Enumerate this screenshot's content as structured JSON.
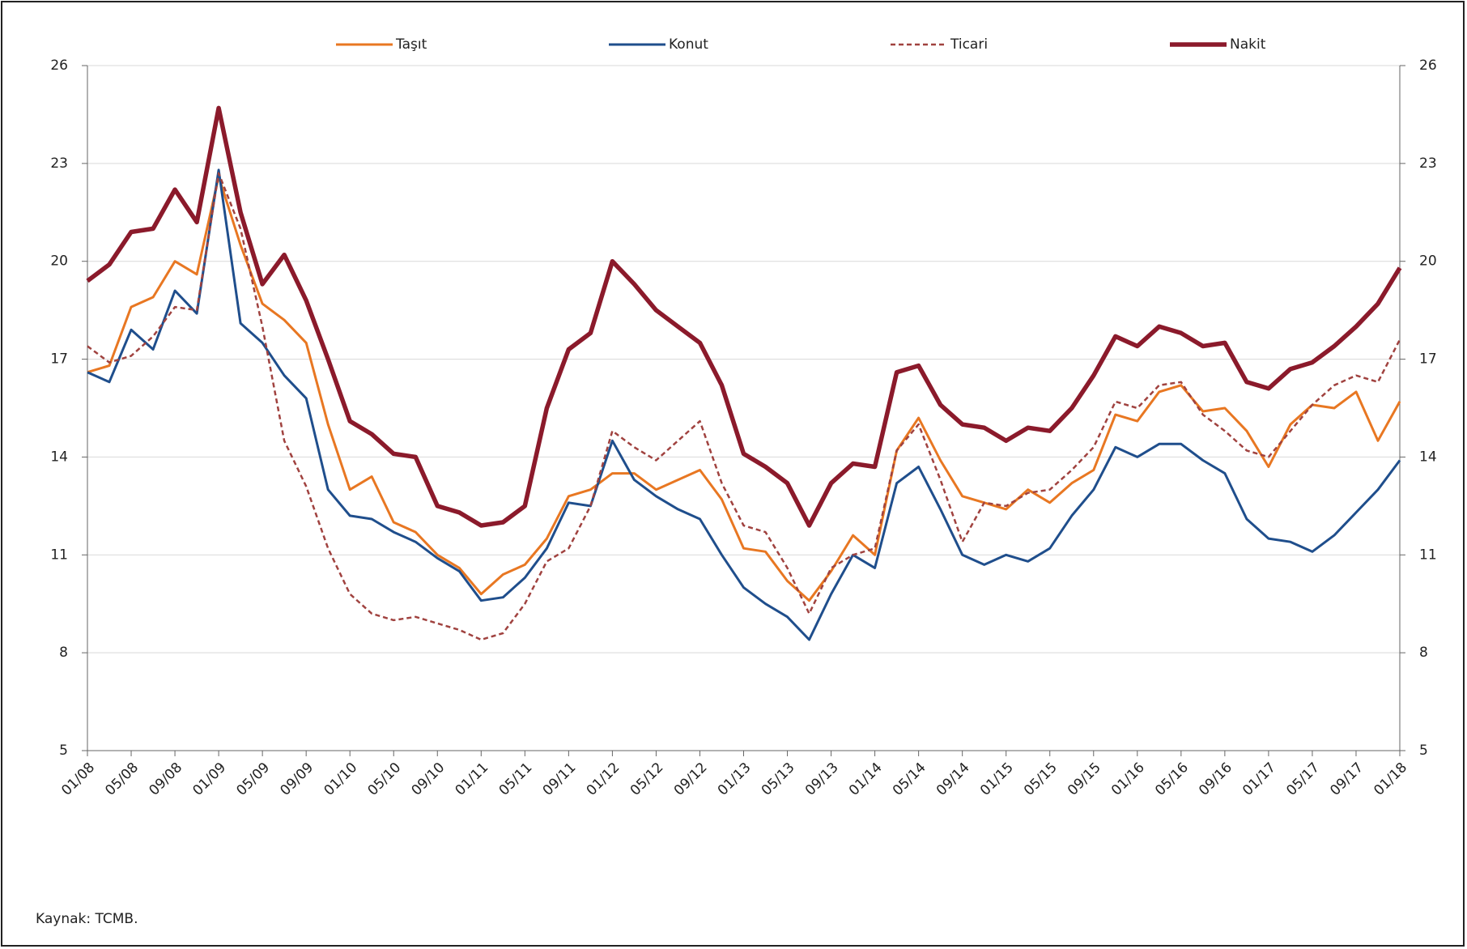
{
  "chart_data": {
    "type": "line",
    "categories": [
      "01/08",
      null,
      "05/08",
      null,
      "09/08",
      null,
      "01/09",
      null,
      "05/09",
      null,
      "09/09",
      null,
      "01/10",
      null,
      "05/10",
      null,
      "09/10",
      null,
      "01/11",
      null,
      "05/11",
      null,
      "09/11",
      null,
      "01/12",
      null,
      "05/12",
      null,
      "09/12",
      null,
      "01/13",
      null,
      "05/13",
      null,
      "09/13",
      null,
      "01/14",
      null,
      "05/14",
      null,
      "09/14",
      null,
      "01/15",
      null,
      "05/15",
      null,
      "09/15",
      null,
      "01/16",
      null,
      "05/16",
      null,
      "09/16",
      null,
      "01/17",
      null,
      "05/17",
      null,
      "09/17",
      null,
      "01/18"
    ],
    "series": [
      {
        "name": "Taşıt",
        "color": "#e87722",
        "line_style": "solid",
        "line_width": 3,
        "values": [
          16.6,
          16.8,
          18.6,
          18.9,
          20.0,
          19.6,
          22.6,
          20.5,
          18.7,
          18.2,
          17.5,
          15.0,
          13.0,
          13.4,
          12.0,
          11.7,
          11.0,
          10.6,
          9.8,
          10.4,
          10.7,
          11.5,
          12.8,
          13.0,
          13.5,
          13.5,
          13.0,
          13.3,
          13.6,
          12.7,
          11.2,
          11.1,
          10.2,
          9.6,
          10.5,
          11.6,
          11.0,
          14.2,
          15.2,
          13.9,
          12.8,
          12.6,
          12.4,
          13.0,
          12.6,
          13.2,
          13.6,
          15.3,
          15.1,
          16.0,
          16.2,
          15.4,
          15.5,
          14.8,
          13.7,
          15.0,
          15.6,
          15.5,
          16.0,
          14.5,
          15.7
        ]
      },
      {
        "name": "Konut",
        "color": "#1f4e8c",
        "line_style": "solid",
        "line_width": 3,
        "values": [
          16.6,
          16.3,
          17.9,
          17.3,
          19.1,
          18.4,
          22.8,
          18.1,
          17.5,
          16.5,
          15.8,
          13.0,
          12.2,
          12.1,
          11.7,
          11.4,
          10.9,
          10.5,
          9.6,
          9.7,
          10.3,
          11.2,
          12.6,
          12.5,
          14.5,
          13.3,
          12.8,
          12.4,
          12.1,
          11.0,
          10.0,
          9.5,
          9.1,
          8.4,
          9.8,
          11.0,
          10.6,
          13.2,
          13.7,
          12.4,
          11.0,
          10.7,
          11.0,
          10.8,
          11.2,
          12.2,
          13.0,
          14.3,
          14.0,
          14.4,
          14.4,
          13.9,
          13.5,
          12.1,
          11.5,
          11.4,
          11.1,
          11.6,
          12.3,
          13.0,
          13.9
        ]
      },
      {
        "name": "Ticari",
        "color": "#a0423f",
        "line_style": "dashed",
        "line_width": 2.5,
        "values": [
          17.4,
          16.9,
          17.1,
          17.7,
          18.6,
          18.5,
          22.7,
          21.0,
          18.0,
          14.5,
          13.1,
          11.2,
          9.8,
          9.2,
          9.0,
          9.1,
          8.9,
          8.7,
          8.4,
          8.6,
          9.5,
          10.8,
          11.2,
          12.5,
          14.8,
          14.3,
          13.9,
          14.5,
          15.1,
          13.2,
          11.9,
          11.7,
          10.6,
          9.2,
          10.6,
          11.0,
          11.2,
          14.2,
          15.0,
          13.3,
          11.4,
          12.6,
          12.5,
          12.9,
          13.0,
          13.6,
          14.3,
          15.7,
          15.5,
          16.2,
          16.3,
          15.3,
          14.8,
          14.2,
          14.0,
          14.8,
          15.6,
          16.2,
          16.5,
          16.3,
          17.6
        ]
      },
      {
        "name": "Nakit",
        "color": "#8b1a2b",
        "line_style": "solid",
        "line_width": 5.5,
        "values": [
          19.4,
          19.9,
          20.9,
          21.0,
          22.2,
          21.2,
          24.7,
          21.5,
          19.3,
          20.2,
          18.8,
          17.0,
          15.1,
          14.7,
          14.1,
          14.0,
          12.5,
          12.3,
          11.9,
          12.0,
          12.5,
          15.5,
          17.3,
          17.8,
          20.0,
          19.3,
          18.5,
          18.0,
          17.5,
          16.2,
          14.1,
          13.7,
          13.2,
          11.9,
          13.2,
          13.8,
          13.7,
          16.6,
          16.8,
          15.6,
          15.0,
          14.9,
          14.5,
          14.9,
          14.8,
          15.5,
          16.5,
          17.7,
          17.4,
          18.0,
          17.8,
          17.4,
          17.5,
          16.3,
          16.1,
          16.7,
          16.9,
          17.4,
          18.0,
          18.7,
          19.8
        ]
      }
    ],
    "ylim": [
      5,
      26
    ],
    "yticks": [
      5,
      8,
      11,
      14,
      17,
      20,
      23,
      26
    ],
    "y2lim": [
      5,
      26
    ],
    "y2ticks": [
      5,
      8,
      11,
      14,
      17,
      20,
      23,
      26
    ],
    "grid": true,
    "legend": "top",
    "source": "Kaynak: TCMB."
  }
}
